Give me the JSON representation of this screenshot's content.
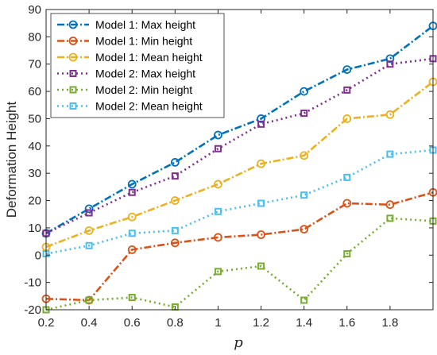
{
  "chart_data": {
    "type": "line",
    "title": "",
    "xlabel": "p",
    "ylabel": "Deformation Height",
    "x": [
      0.2,
      0.4,
      0.6,
      0.8,
      1.0,
      1.2,
      1.4,
      1.6,
      1.8,
      2.0
    ],
    "xlim": [
      0.2,
      2.0
    ],
    "ylim": [
      -20,
      90
    ],
    "xticks": [
      "0.2",
      "0.4",
      "0.6",
      "0.8",
      "1",
      "1.2",
      "1.4",
      "1.6",
      "1.8"
    ],
    "yticks": [
      "-20",
      "-10",
      "0",
      "10",
      "20",
      "30",
      "40",
      "50",
      "60",
      "70",
      "80",
      "90"
    ],
    "grid": false,
    "legend_position": "top-left",
    "series": [
      {
        "name": "Model 1: Max height",
        "values": [
          8,
          17,
          26,
          34,
          44,
          50,
          60,
          68,
          72,
          84
        ],
        "color": "#0072BD",
        "marker": "circle",
        "line": "dashdot"
      },
      {
        "name": "Model 1: Min height",
        "values": [
          -16,
          -16.5,
          2,
          4.5,
          6.5,
          7.5,
          9.5,
          19,
          18.5,
          23
        ],
        "color": "#D95319",
        "marker": "circle",
        "line": "dashdot"
      },
      {
        "name": "Model 1: Mean height",
        "values": [
          3,
          9,
          14,
          20,
          26,
          33.5,
          36.5,
          50,
          51.5,
          63.5
        ],
        "color": "#EDB120",
        "marker": "circle",
        "line": "dashdot"
      },
      {
        "name": "Model 2: Max height",
        "values": [
          8,
          15.5,
          23,
          29,
          39,
          48,
          52,
          60.5,
          70,
          72
        ],
        "color": "#7E2F8E",
        "marker": "square",
        "line": "dotted"
      },
      {
        "name": "Model 2: Min height",
        "values": [
          -20,
          -16.5,
          -15.5,
          -19,
          -6,
          -4,
          -16.5,
          0.5,
          13.5,
          12.5
        ],
        "color": "#77AC30",
        "marker": "square",
        "line": "dotted"
      },
      {
        "name": "Model 2: Mean height",
        "values": [
          0.5,
          3.5,
          8,
          9,
          16,
          19,
          22,
          28.5,
          37,
          38.5
        ],
        "color": "#4DBEEE",
        "marker": "square",
        "line": "dotted"
      }
    ]
  }
}
